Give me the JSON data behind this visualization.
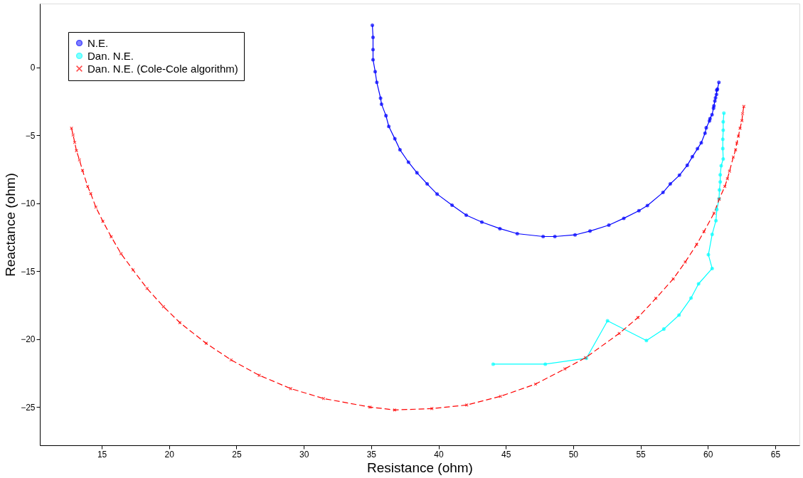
{
  "chart_data": {
    "type": "line",
    "xlabel": "Resistance (ohm)",
    "ylabel": "Reactance (ohm)",
    "xlim": [
      10.4,
      66.8
    ],
    "ylim": [
      -27.8,
      4.7
    ],
    "xticks": [
      15,
      20,
      25,
      30,
      35,
      40,
      45,
      50,
      55,
      60,
      65
    ],
    "yticks": [
      -25,
      -20,
      -15,
      -10,
      -5,
      0
    ],
    "grid": false,
    "legend": "top left",
    "series": [
      {
        "name": "N.E.",
        "color": "#0000ff",
        "marker": "circle",
        "line_style": "solid",
        "x": [
          35.09,
          35.14,
          35.14,
          35.14,
          35.3,
          35.42,
          35.7,
          35.77,
          36.1,
          36.31,
          36.76,
          37.14,
          37.77,
          38.4,
          39.16,
          39.9,
          41.01,
          42.06,
          43.22,
          44.56,
          45.85,
          47.77,
          48.64,
          50.14,
          51.25,
          52.65,
          53.76,
          54.88,
          55.51,
          56.67,
          57.21,
          57.89,
          58.47,
          58.85,
          59.23,
          59.51,
          59.79,
          59.88,
          60.12,
          60.16,
          60.31,
          60.42,
          60.45,
          60.52,
          60.57,
          60.64,
          60.66,
          60.71,
          60.82
        ],
        "values": [
          3.1,
          2.21,
          1.31,
          0.57,
          -0.31,
          -1.1,
          -2.26,
          -2.7,
          -3.55,
          -4.34,
          -5.25,
          -6.06,
          -6.97,
          -7.75,
          -8.57,
          -9.32,
          -10.14,
          -10.87,
          -11.38,
          -11.86,
          -12.23,
          -12.44,
          -12.44,
          -12.32,
          -12.04,
          -11.6,
          -11.1,
          -10.54,
          -10.16,
          -9.2,
          -8.57,
          -7.93,
          -7.2,
          -6.57,
          -5.98,
          -5.54,
          -4.84,
          -4.44,
          -3.94,
          -3.76,
          -3.48,
          -3.0,
          -2.82,
          -2.47,
          -2.23,
          -1.99,
          -1.67,
          -1.6,
          -1.1
        ]
      },
      {
        "name": "Dan. N.E.",
        "color": "#00ffff",
        "marker": "circle",
        "line_style": "solid",
        "x": [
          44.06,
          47.93,
          50.98,
          52.55,
          55.44,
          56.73,
          57.86,
          58.75,
          59.31,
          60.32,
          60.04,
          60.32,
          60.6,
          60.67,
          60.83,
          60.86,
          60.92,
          60.92,
          60.99,
          61.14,
          61.11,
          61.11,
          61.14,
          61.14,
          61.19
        ],
        "values": [
          -21.83,
          -21.83,
          -21.4,
          -18.64,
          -20.09,
          -19.25,
          -18.22,
          -16.97,
          -15.92,
          -14.79,
          -13.78,
          -12.28,
          -11.27,
          -10.45,
          -9.67,
          -9.01,
          -8.42,
          -7.9,
          -7.23,
          -6.74,
          -5.97,
          -5.28,
          -4.62,
          -4.0,
          -3.36
        ]
      },
      {
        "name": "Dan. N.E. (Cole-Cole algorithm)",
        "color": "#ff0000",
        "marker": "cross",
        "line_style": "dashed",
        "x": [
          12.75,
          12.87,
          12.99,
          13.12,
          13.34,
          13.57,
          13.95,
          14.18,
          14.56,
          15.08,
          15.7,
          16.43,
          17.32,
          18.36,
          19.58,
          20.8,
          22.75,
          24.6,
          26.69,
          29.03,
          31.47,
          34.92,
          36.74,
          39.51,
          42.1,
          44.6,
          47.2,
          49.38,
          50.91,
          53.42,
          54.81,
          56.14,
          57.43,
          58.32,
          59.17,
          59.71,
          60.46,
          60.84,
          61.26,
          61.45,
          61.61,
          61.89,
          62.06,
          62.15,
          62.27,
          62.39,
          62.53,
          62.58,
          62.67
        ],
        "values": [
          -4.47,
          -4.97,
          -5.52,
          -6.13,
          -6.8,
          -7.58,
          -8.75,
          -9.28,
          -10.28,
          -11.32,
          -12.46,
          -13.7,
          -14.9,
          -16.26,
          -17.6,
          -18.78,
          -20.3,
          -21.52,
          -22.65,
          -23.63,
          -24.36,
          -24.99,
          -25.2,
          -25.1,
          -24.84,
          -24.2,
          -23.3,
          -22.18,
          -21.36,
          -19.57,
          -18.4,
          -16.99,
          -15.56,
          -14.32,
          -13.02,
          -12.08,
          -10.72,
          -9.7,
          -8.76,
          -8.19,
          -7.63,
          -6.59,
          -6.06,
          -5.57,
          -5.05,
          -4.48,
          -3.92,
          -3.4,
          -2.87
        ]
      }
    ]
  }
}
